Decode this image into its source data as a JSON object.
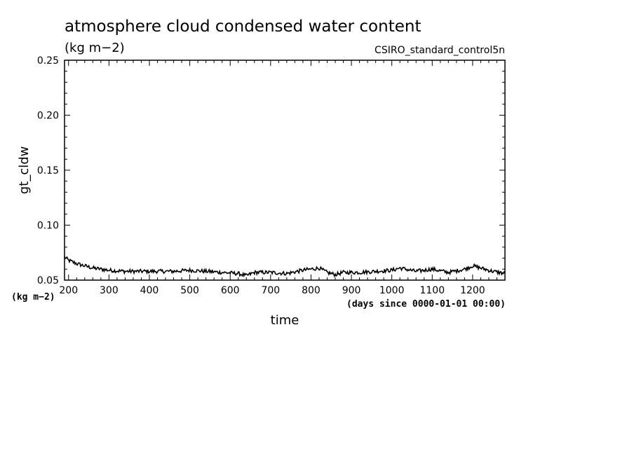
{
  "chart_data": {
    "type": "line",
    "title": "atmosphere cloud condensed water content",
    "units_label": "(kg m−2)",
    "run_label": "CSIRO_standard_control5n",
    "xlabel": "time",
    "x_units": "(days since 0000-01-01 00:00)",
    "ylabel": "gt_cldw",
    "y_units": "(kg m−2)",
    "xlim": [
      190,
      1280
    ],
    "ylim": [
      0.05,
      0.25
    ],
    "x_ticks": [
      200,
      300,
      400,
      500,
      600,
      700,
      800,
      900,
      1000,
      1100,
      1200
    ],
    "y_ticks": [
      "0.05",
      "0.10",
      "0.15",
      "0.20",
      "0.25"
    ],
    "grid": false,
    "series": [
      {
        "line_color": "#000000",
        "x": [
          190,
          200,
          220,
          240,
          260,
          280,
          300,
          340,
          380,
          420,
          460,
          500,
          540,
          580,
          620,
          640,
          660,
          700,
          740,
          780,
          820,
          840,
          860,
          880,
          920,
          960,
          1000,
          1020,
          1060,
          1100,
          1140,
          1180,
          1200,
          1220,
          1250,
          1280
        ],
        "y": [
          0.071,
          0.068,
          0.065,
          0.063,
          0.061,
          0.06,
          0.059,
          0.058,
          0.058,
          0.058,
          0.058,
          0.059,
          0.058,
          0.057,
          0.056,
          0.054,
          0.057,
          0.057,
          0.056,
          0.059,
          0.061,
          0.057,
          0.055,
          0.057,
          0.057,
          0.058,
          0.059,
          0.061,
          0.058,
          0.06,
          0.057,
          0.06,
          0.063,
          0.061,
          0.058,
          0.056
        ]
      }
    ]
  }
}
